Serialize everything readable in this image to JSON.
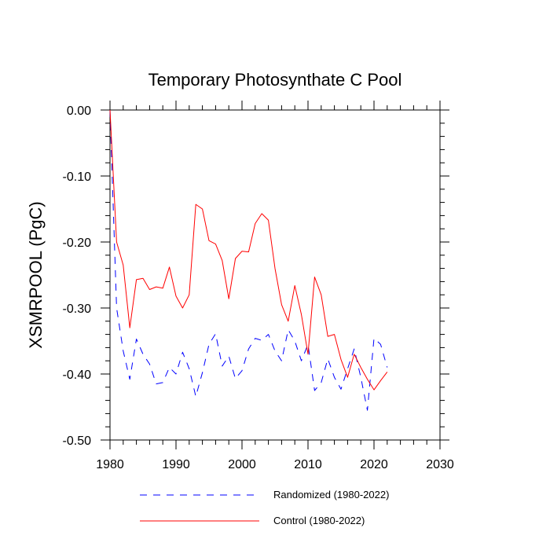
{
  "chart_data": {
    "type": "line",
    "title": "Temporary Photosynthate C Pool",
    "xlabel": "",
    "ylabel": "XSMRPOOL  (PgC)",
    "xlim": [
      1980,
      2030
    ],
    "ylim": [
      -0.5,
      0.0
    ],
    "xticks": [
      1980,
      1990,
      2000,
      2010,
      2020,
      2030
    ],
    "xtick_labels": [
      "1980",
      "1990",
      "2000",
      "2010",
      "2020",
      "2030"
    ],
    "yticks": [
      0.0,
      -0.1,
      -0.2,
      -0.3,
      -0.4,
      -0.5
    ],
    "ytick_labels": [
      "0.00",
      "-0.10",
      "-0.20",
      "-0.30",
      "-0.40",
      "-0.50"
    ],
    "grid": false,
    "legend_position": "bottom",
    "x": [
      1980,
      1981,
      1982,
      1983,
      1984,
      1985,
      1986,
      1987,
      1988,
      1989,
      1990,
      1991,
      1992,
      1993,
      1994,
      1995,
      1996,
      1997,
      1998,
      1999,
      2000,
      2001,
      2002,
      2003,
      2004,
      2005,
      2006,
      2007,
      2008,
      2009,
      2010,
      2011,
      2012,
      2013,
      2014,
      2015,
      2016,
      2017,
      2018,
      2019,
      2020,
      2021,
      2022
    ],
    "series": [
      {
        "name": "Randomized (1980-2022)",
        "style": "dashed",
        "color": "#0000ff",
        "values": [
          0.0,
          -0.3,
          -0.365,
          -0.408,
          -0.347,
          -0.37,
          -0.385,
          -0.415,
          -0.413,
          -0.39,
          -0.4,
          -0.367,
          -0.392,
          -0.434,
          -0.398,
          -0.355,
          -0.339,
          -0.388,
          -0.373,
          -0.407,
          -0.395,
          -0.362,
          -0.346,
          -0.349,
          -0.34,
          -0.365,
          -0.38,
          -0.333,
          -0.35,
          -0.38,
          -0.355,
          -0.425,
          -0.413,
          -0.377,
          -0.405,
          -0.423,
          -0.392,
          -0.362,
          -0.405,
          -0.455,
          -0.346,
          -0.355,
          -0.39
        ]
      },
      {
        "name": "Control (1980-2022)",
        "style": "solid",
        "color": "#ff0000",
        "values": [
          0.0,
          -0.2,
          -0.235,
          -0.33,
          -0.257,
          -0.255,
          -0.272,
          -0.268,
          -0.27,
          -0.238,
          -0.282,
          -0.3,
          -0.28,
          -0.143,
          -0.15,
          -0.198,
          -0.203,
          -0.228,
          -0.286,
          -0.225,
          -0.214,
          -0.215,
          -0.172,
          -0.157,
          -0.167,
          -0.24,
          -0.295,
          -0.32,
          -0.266,
          -0.31,
          -0.37,
          -0.253,
          -0.28,
          -0.343,
          -0.34,
          -0.378,
          -0.405,
          -0.37,
          -0.39,
          -0.408,
          -0.424,
          -0.41,
          -0.397
        ]
      }
    ]
  },
  "colors": {
    "axis": "#000000",
    "randomized": "#0000ff",
    "control": "#ff0000"
  }
}
